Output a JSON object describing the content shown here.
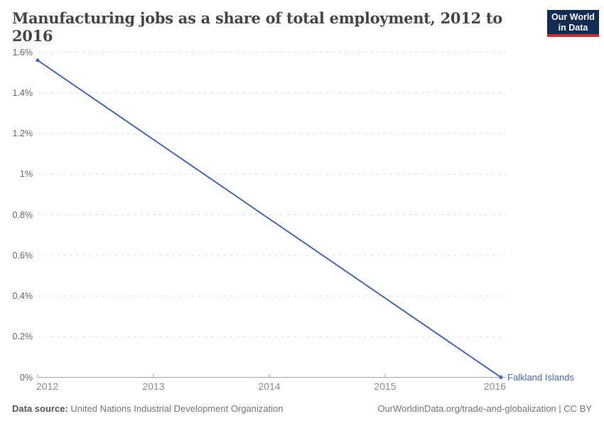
{
  "header": {
    "title": "Manufacturing jobs as a share of total employment, 2012 to 2016",
    "logo": {
      "line1": "Our World",
      "line2": "in Data"
    }
  },
  "colors": {
    "logo_bg": "#132c52",
    "logo_accent": "#cc2f2f",
    "line": "#4668b2",
    "grid": "#dedede",
    "axis": "#a2a2a2",
    "y_tick": "#666666",
    "x_tick": "#8d8d8d",
    "title": "#454545",
    "footer": "#757575"
  },
  "chart_data": {
    "type": "line",
    "title": "Manufacturing jobs as a share of total employment, 2012 to 2016",
    "xlabel": "",
    "ylabel": "",
    "xlim": [
      2012,
      2016
    ],
    "ylim": [
      0,
      1.6
    ],
    "grid": "horizontal-dashed",
    "legend_position": "end-of-line-label",
    "x_ticks": [
      {
        "value": 2012,
        "label": "2012"
      },
      {
        "value": 2013,
        "label": "2013"
      },
      {
        "value": 2014,
        "label": "2014"
      },
      {
        "value": 2015,
        "label": "2015"
      },
      {
        "value": 2016,
        "label": "2016"
      }
    ],
    "y_ticks": [
      {
        "value": 0,
        "label": "0%"
      },
      {
        "value": 0.2,
        "label": "0.2%"
      },
      {
        "value": 0.4,
        "label": "0.4%"
      },
      {
        "value": 0.6,
        "label": "0.6%"
      },
      {
        "value": 0.8,
        "label": "0.8%"
      },
      {
        "value": 1,
        "label": "1%"
      },
      {
        "value": 1.2,
        "label": "1.2%"
      },
      {
        "value": 1.4,
        "label": "1.4%"
      },
      {
        "value": 1.6,
        "label": "1.6%"
      }
    ],
    "series": [
      {
        "name": "Falkland Islands",
        "end_label": "Falkland Islands",
        "color": "#4668b2",
        "points": [
          {
            "x": 2012,
            "y": 1.56
          },
          {
            "x": 2016,
            "y": 0
          }
        ]
      }
    ]
  },
  "footer": {
    "source_label": "Data source:",
    "source_value": "United Nations Industrial Development Organization",
    "attribution": "OurWorldinData.org/trade-and-globalization | CC BY"
  }
}
